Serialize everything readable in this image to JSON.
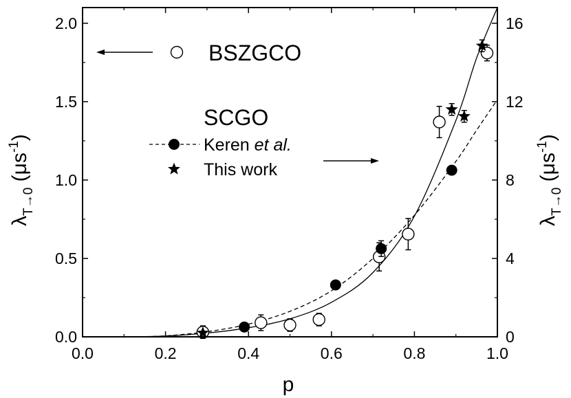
{
  "chart_data": {
    "type": "scatter",
    "xlabel": "p",
    "ylabel_left": {
      "main": "λ",
      "sub": "T→0",
      "unit": " (μs",
      "exp": "-1",
      "close": ")"
    },
    "ylabel_right": {
      "main": "λ",
      "sub": "T→0",
      "unit": " (μs",
      "exp": "-1",
      "close": ")"
    },
    "xlim": [
      0.0,
      1.0
    ],
    "ylim_left": [
      0.0,
      2.1
    ],
    "ylim_right": [
      0.0,
      16.8
    ],
    "x_ticks": [
      "0.0",
      "0.2",
      "0.4",
      "0.6",
      "0.8",
      "1.0"
    ],
    "y_left_ticks": [
      "0.0",
      "0.5",
      "1.0",
      "1.5",
      "2.0"
    ],
    "y_right_ticks": [
      "0",
      "4",
      "8",
      "12",
      "16"
    ],
    "legend": {
      "bszgco": "BSZGCO",
      "scgo": "SCGO",
      "keren_prefix": "Keren ",
      "keren_italic": "et al.",
      "this_work": "This work"
    },
    "series": [
      {
        "id": "bszgco",
        "marker": "open-circle",
        "axis": "left",
        "x": [
          0.29,
          0.43,
          0.5,
          0.57,
          0.715,
          0.785,
          0.86,
          0.975
        ],
        "y": [
          0.03,
          0.09,
          0.075,
          0.11,
          0.51,
          0.655,
          1.37,
          1.81
        ],
        "err": [
          0.04,
          0.05,
          0.04,
          0.04,
          0.09,
          0.1,
          0.1,
          0.05
        ]
      },
      {
        "id": "keren",
        "marker": "filled-circle",
        "axis": "right",
        "x": [
          0.39,
          0.61,
          0.72,
          0.89
        ],
        "y": [
          0.5,
          2.65,
          4.5,
          8.5
        ],
        "err": [
          0.0,
          0.0,
          0.4,
          0.0
        ]
      },
      {
        "id": "this_work",
        "marker": "star",
        "axis": "right",
        "x": [
          0.29,
          0.89,
          0.92,
          0.963
        ],
        "y": [
          0.2,
          11.6,
          11.25,
          14.85
        ],
        "err": [
          0.0,
          0.3,
          0.3,
          0.3
        ]
      }
    ],
    "fit_solid": {
      "axis": "left",
      "x": [
        0.12,
        0.2,
        0.3,
        0.4,
        0.5,
        0.6,
        0.7,
        0.8,
        0.9,
        0.95,
        1.0
      ],
      "y": [
        0.0,
        0.005,
        0.024,
        0.058,
        0.115,
        0.22,
        0.41,
        0.77,
        1.38,
        1.78,
        2.1
      ]
    },
    "fit_dashed": {
      "axis": "right",
      "x": [
        0.12,
        0.2,
        0.3,
        0.4,
        0.5,
        0.6,
        0.7,
        0.8,
        0.9,
        0.95,
        1.0
      ],
      "y": [
        0.0,
        0.05,
        0.26,
        0.65,
        1.3,
        2.35,
        4.0,
        6.2,
        8.95,
        10.55,
        12.1
      ]
    }
  }
}
